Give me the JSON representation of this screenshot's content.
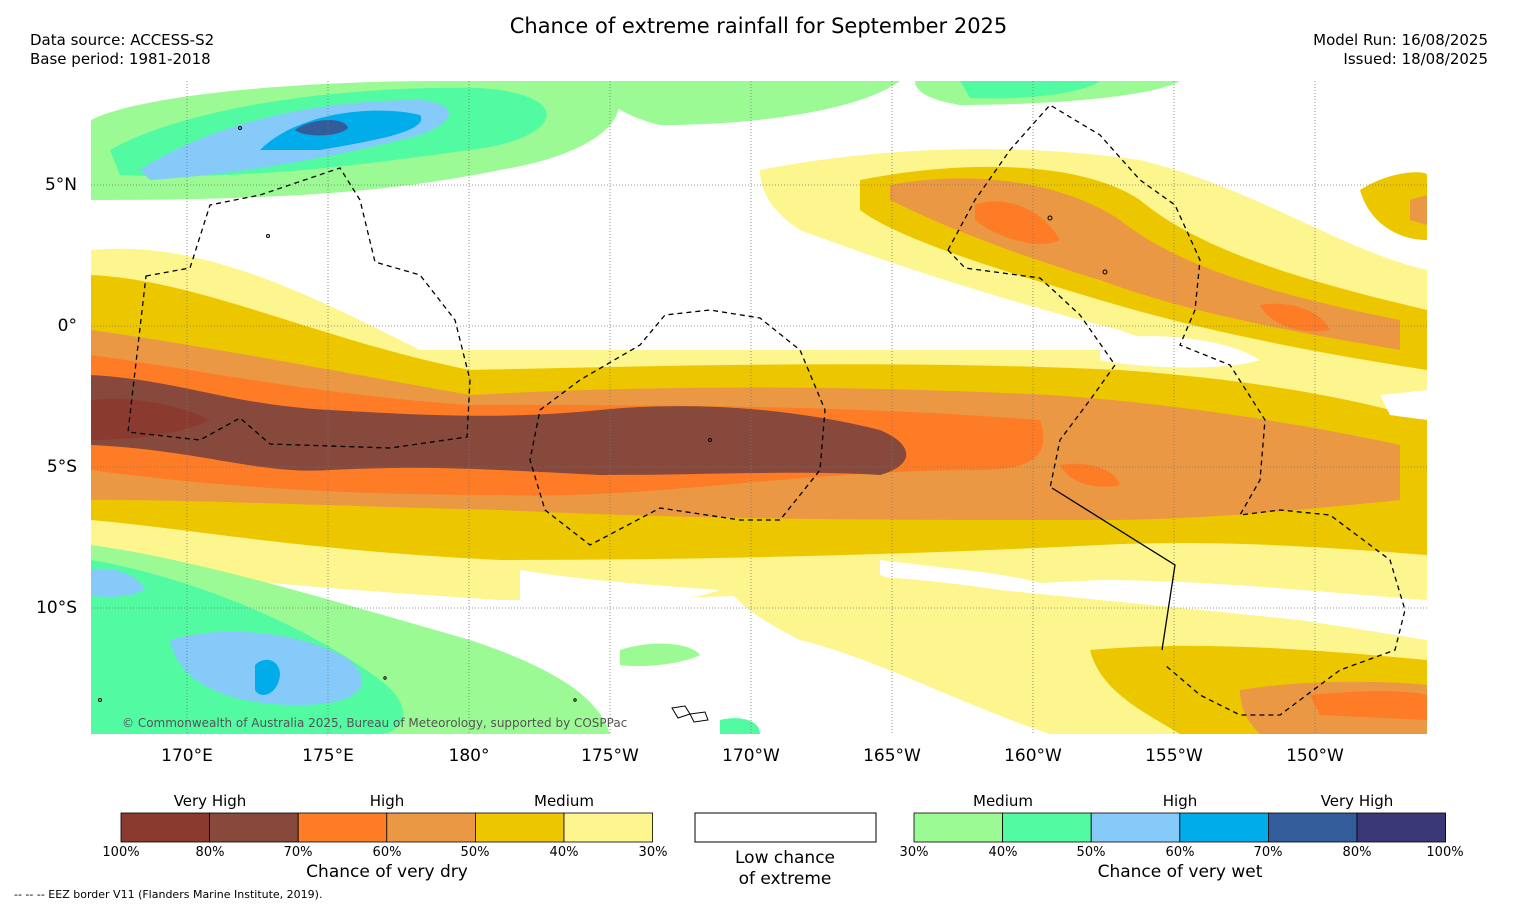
{
  "header": {
    "title": "Chance of extreme rainfall for September 2025",
    "data_source": "Data source: ACCESS-S2",
    "base_period": "Base period: 1981-2018",
    "model_run": "Model Run: 16/08/2025",
    "issued": "Issued: 18/08/2025"
  },
  "map": {
    "lat_labels": [
      "5°N",
      "0°",
      "5°S",
      "10°S"
    ],
    "lon_labels": [
      "170°E",
      "175°E",
      "180°",
      "175°W",
      "170°W",
      "165°W",
      "160°W",
      "155°W",
      "150°W"
    ],
    "credit": "© Commonwealth of Australia 2025, Bureau of Meteorology, supported by COSPPac"
  },
  "legend": {
    "dry": {
      "groups": [
        "Very High",
        "High",
        "Medium"
      ],
      "colors": [
        "#8b3a30",
        "#87493c",
        "#ff7c26",
        "#ea9844",
        "#ecc700",
        "#fdf58d"
      ],
      "ticks": [
        "100%",
        "80%",
        "70%",
        "60%",
        "50%",
        "40%",
        "30%"
      ],
      "caption": "Chance of very dry"
    },
    "neutral": {
      "color": "#ffffff",
      "caption_line1": "Low chance",
      "caption_line2": "of extreme"
    },
    "wet": {
      "groups": [
        "Medium",
        "High",
        "Very High"
      ],
      "colors": [
        "#9bfa94",
        "#52fba2",
        "#86caf9",
        "#00adea",
        "#335c9a",
        "#3b3878"
      ],
      "ticks": [
        "30%",
        "40%",
        "50%",
        "60%",
        "70%",
        "80%",
        "100%"
      ],
      "caption": "Chance of very wet"
    }
  },
  "footnote": "--  --  -- EEZ border V11 (Flanders Marine Institute, 2019)."
}
